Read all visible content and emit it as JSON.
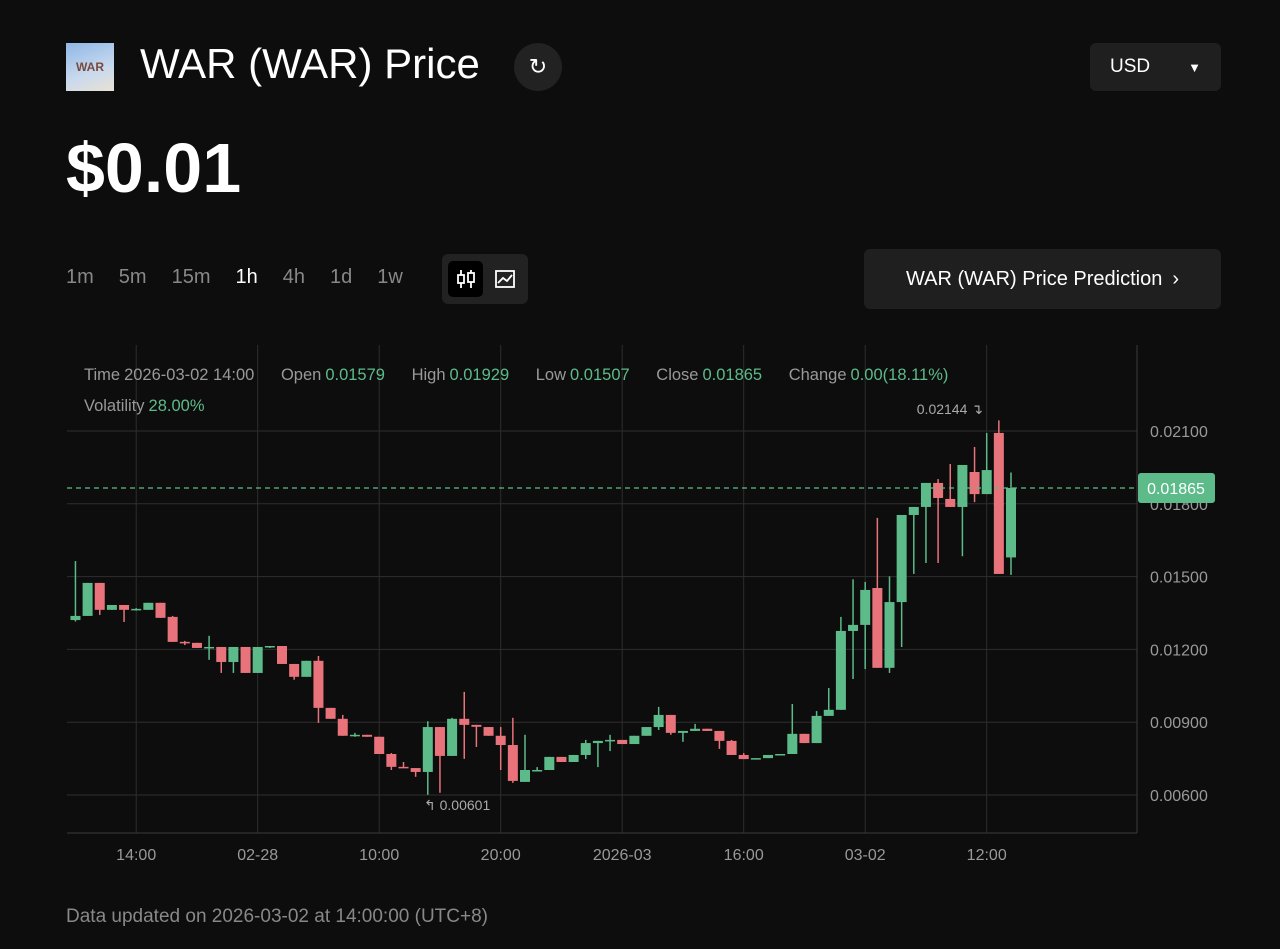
{
  "header": {
    "logo_text": "WAR",
    "title": "WAR (WAR) Price",
    "refresh_icon": "refresh-icon",
    "currency": "USD"
  },
  "price": "$0.01",
  "timeframes": [
    {
      "label": "1m"
    },
    {
      "label": "5m"
    },
    {
      "label": "15m"
    },
    {
      "label": "1h",
      "active": true
    },
    {
      "label": "4h"
    },
    {
      "label": "1d"
    },
    {
      "label": "1w"
    }
  ],
  "chart_type_toggle": {
    "options": [
      "candlestick-icon",
      "line-chart-icon"
    ],
    "active": "candlestick-icon"
  },
  "prediction_button": "WAR (WAR) Price Prediction",
  "info": {
    "time_label": "Time",
    "time": "2026-03-02 14:00",
    "open_label": "Open",
    "open": "0.01579",
    "high_label": "High",
    "high": "0.01929",
    "low_label": "Low",
    "low": "0.01507",
    "close_label": "Close",
    "close": "0.01865",
    "change_label": "Change",
    "change": "0.00(18.11%)",
    "volatility_label": "Volatility",
    "volatility": "28.00%"
  },
  "colors": {
    "up": "#5dbb8a",
    "down": "#e8737a",
    "background": "#0d0d0d"
  },
  "chart_data": {
    "type": "candlestick",
    "ylim": [
      0.0047,
      0.0249
    ],
    "yticks": [
      "0.00600",
      "0.00900",
      "0.01200",
      "0.01500",
      "0.01800",
      "0.02100"
    ],
    "xticks": [
      {
        "label": "14:00",
        "index": 5
      },
      {
        "label": "02-28",
        "index": 15
      },
      {
        "label": "10:00",
        "index": 25
      },
      {
        "label": "20:00",
        "index": 35
      },
      {
        "label": "2026-03",
        "index": 45
      },
      {
        "label": "16:00",
        "index": 55
      },
      {
        "label": "03-02",
        "index": 65
      },
      {
        "label": "12:00",
        "index": 75
      }
    ],
    "current_price": "0.01865",
    "max_label": "0.02144",
    "min_label": "0.00601",
    "candles": [
      [
        0.01321,
        0.01564,
        0.01315,
        0.01338
      ],
      [
        0.01338,
        0.01474,
        0.01338,
        0.01474
      ],
      [
        0.01474,
        0.01474,
        0.01342,
        0.01363
      ],
      [
        0.01363,
        0.01383,
        0.01363,
        0.01383
      ],
      [
        0.01383,
        0.01383,
        0.01313,
        0.01363
      ],
      [
        0.01363,
        0.0137,
        0.0136,
        0.01367
      ],
      [
        0.01363,
        0.01392,
        0.01363,
        0.01392
      ],
      [
        0.01392,
        0.01392,
        0.0133,
        0.0133
      ],
      [
        0.01334,
        0.01338,
        0.01231,
        0.01231
      ],
      [
        0.01231,
        0.01235,
        0.01218,
        0.01227
      ],
      [
        0.01227,
        0.01227,
        0.01206,
        0.01206
      ],
      [
        0.01206,
        0.01256,
        0.01157,
        0.0121
      ],
      [
        0.0121,
        0.0121,
        0.01103,
        0.01148
      ],
      [
        0.01148,
        0.0121,
        0.01103,
        0.0121
      ],
      [
        0.0121,
        0.0121,
        0.01103,
        0.01103
      ],
      [
        0.01103,
        0.0121,
        0.01103,
        0.0121
      ],
      [
        0.0121,
        0.01214,
        0.01206,
        0.01214
      ],
      [
        0.01214,
        0.01214,
        0.0114,
        0.0114
      ],
      [
        0.0114,
        0.0114,
        0.01075,
        0.01087
      ],
      [
        0.01087,
        0.01153,
        0.01087,
        0.01153
      ],
      [
        0.01153,
        0.01173,
        0.00897,
        0.00959
      ],
      [
        0.00959,
        0.00959,
        0.00914,
        0.00914
      ],
      [
        0.00914,
        0.0093,
        0.00844,
        0.00844
      ],
      [
        0.00844,
        0.00856,
        0.0084,
        0.00848
      ],
      [
        0.00848,
        0.00848,
        0.0084,
        0.0084
      ],
      [
        0.0084,
        0.0084,
        0.00769,
        0.00769
      ],
      [
        0.00769,
        0.00773,
        0.00703,
        0.00716
      ],
      [
        0.00716,
        0.00736,
        0.00711,
        0.00711
      ],
      [
        0.00711,
        0.00711,
        0.00675,
        0.00695
      ],
      [
        0.00695,
        0.00904,
        0.00601,
        0.0088
      ],
      [
        0.0088,
        0.0088,
        0.00609,
        0.00761
      ],
      [
        0.00761,
        0.00918,
        0.00761,
        0.00914
      ],
      [
        0.00914,
        0.01025,
        0.00749,
        0.00889
      ],
      [
        0.00889,
        0.00889,
        0.00798,
        0.00881
      ],
      [
        0.0088,
        0.0088,
        0.00844,
        0.00844
      ],
      [
        0.00844,
        0.0088,
        0.00703,
        0.00806
      ],
      [
        0.00806,
        0.00918,
        0.0065,
        0.00658
      ],
      [
        0.00654,
        0.00848,
        0.00654,
        0.00703
      ],
      [
        0.00699,
        0.00715,
        0.00699,
        0.00703
      ],
      [
        0.00703,
        0.00757,
        0.00703,
        0.00757
      ],
      [
        0.00757,
        0.00757,
        0.00736,
        0.00736
      ],
      [
        0.00736,
        0.00765,
        0.00736,
        0.00765
      ],
      [
        0.00765,
        0.00827,
        0.00748,
        0.00814
      ],
      [
        0.00814,
        0.00823,
        0.00715,
        0.00823
      ],
      [
        0.00823,
        0.00848,
        0.00781,
        0.00827
      ],
      [
        0.00827,
        0.00827,
        0.0081,
        0.0081
      ],
      [
        0.0081,
        0.00844,
        0.0081,
        0.00844
      ],
      [
        0.00844,
        0.0088,
        0.00844,
        0.0088
      ],
      [
        0.0088,
        0.00963,
        0.00868,
        0.0093
      ],
      [
        0.0093,
        0.0093,
        0.00848,
        0.00856
      ],
      [
        0.00856,
        0.00864,
        0.00819,
        0.00864
      ],
      [
        0.00864,
        0.00893,
        0.00864,
        0.00873
      ],
      [
        0.00873,
        0.00873,
        0.00864,
        0.00864
      ],
      [
        0.00864,
        0.00864,
        0.0079,
        0.00823
      ],
      [
        0.00823,
        0.00827,
        0.00765,
        0.00765
      ],
      [
        0.00765,
        0.00773,
        0.00748,
        0.00748
      ],
      [
        0.00748,
        0.00752,
        0.00748,
        0.00752
      ],
      [
        0.00752,
        0.00765,
        0.00752,
        0.00765
      ],
      [
        0.00765,
        0.00769,
        0.00765,
        0.00769
      ],
      [
        0.00769,
        0.00975,
        0.00769,
        0.00852
      ],
      [
        0.00852,
        0.00852,
        0.00814,
        0.00814
      ],
      [
        0.00814,
        0.00946,
        0.00814,
        0.00926
      ],
      [
        0.00926,
        0.01041,
        0.00926,
        0.00951
      ],
      [
        0.00951,
        0.01334,
        0.00951,
        0.01276
      ],
      [
        0.01276,
        0.01489,
        0.01078,
        0.01301
      ],
      [
        0.01301,
        0.01478,
        0.01119,
        0.01445
      ],
      [
        0.01453,
        0.01742,
        0.01124,
        0.01124
      ],
      [
        0.01124,
        0.01501,
        0.01103,
        0.01395
      ],
      [
        0.01395,
        0.01754,
        0.0121,
        0.01754
      ],
      [
        0.01754,
        0.01787,
        0.01511,
        0.01787
      ],
      [
        0.01787,
        0.01886,
        0.01556,
        0.01886
      ],
      [
        0.01886,
        0.01902,
        0.01556,
        0.01824
      ],
      [
        0.0182,
        0.01964,
        0.01787,
        0.01787
      ],
      [
        0.01787,
        0.0196,
        0.01584,
        0.0196
      ],
      [
        0.01931,
        0.02034,
        0.01807,
        0.0184
      ],
      [
        0.0184,
        0.02092,
        0.0184,
        0.01939
      ],
      [
        0.02092,
        0.02144,
        0.01511,
        0.01511
      ],
      [
        0.01579,
        0.01929,
        0.01507,
        0.01865
      ]
    ]
  },
  "footer": "Data updated on 2026-03-02 at 14:00:00 (UTC+8)"
}
